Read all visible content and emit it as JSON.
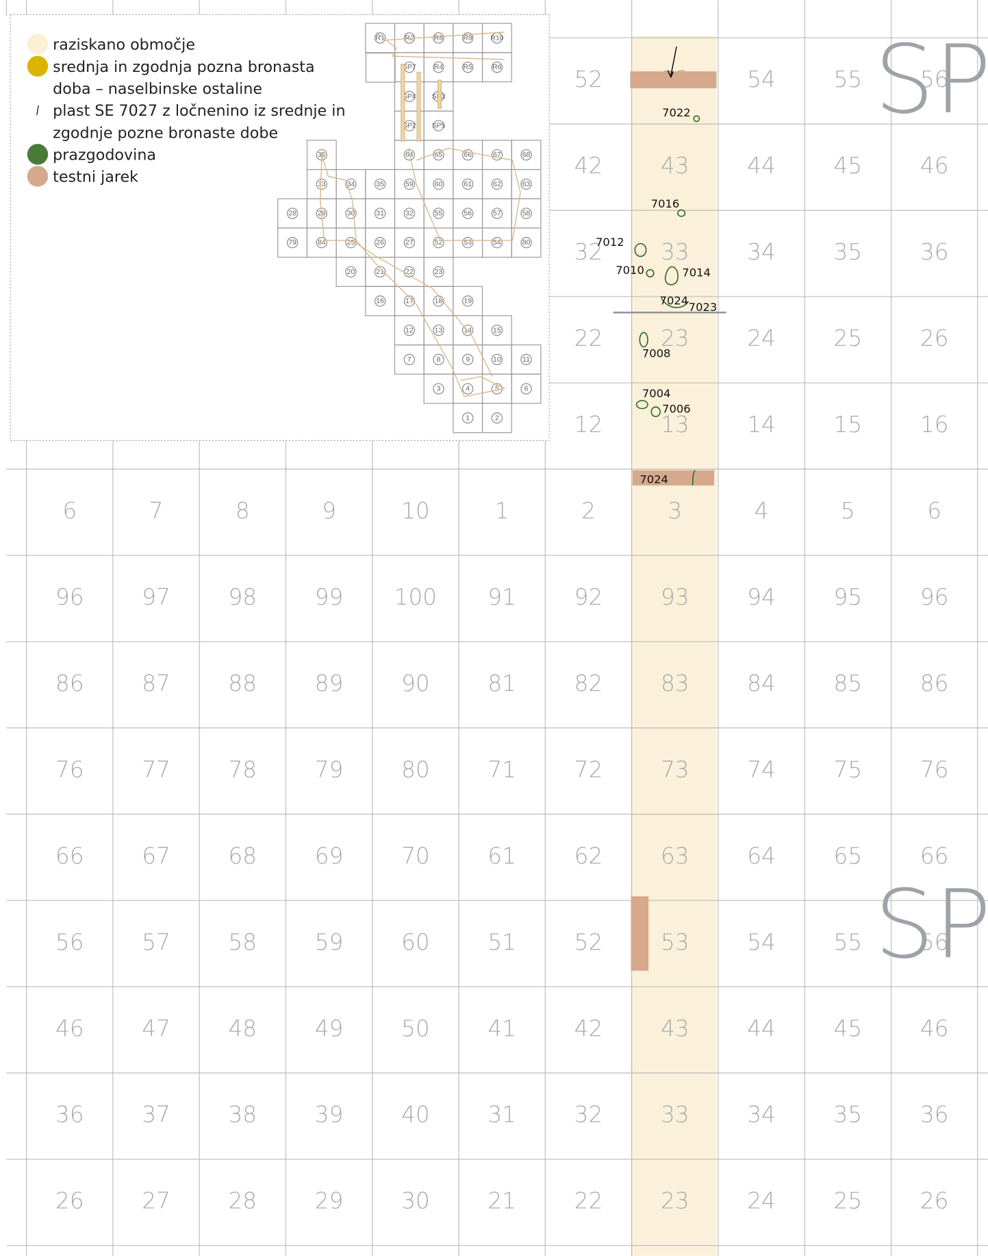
{
  "grid": {
    "rows": [
      [
        null,
        null,
        null,
        null,
        null,
        null,
        "52",
        "53",
        "54",
        "55",
        "56"
      ],
      [
        null,
        null,
        null,
        null,
        null,
        null,
        "42",
        "43",
        "44",
        "45",
        "46"
      ],
      [
        null,
        null,
        null,
        null,
        null,
        null,
        "32",
        "33",
        "34",
        "35",
        "36"
      ],
      [
        null,
        null,
        null,
        null,
        null,
        null,
        "22",
        "23",
        "24",
        "25",
        "26"
      ],
      [
        null,
        null,
        null,
        null,
        null,
        null,
        "12",
        "13",
        "14",
        "15",
        "16"
      ],
      [
        "6",
        "7",
        "8",
        "9",
        "10",
        "1",
        "2",
        "3",
        "4",
        "5",
        "6"
      ],
      [
        "96",
        "97",
        "98",
        "99",
        "100",
        "91",
        "92",
        "93",
        "94",
        "95",
        "96"
      ],
      [
        "86",
        "87",
        "88",
        "89",
        "90",
        "81",
        "82",
        "83",
        "84",
        "85",
        "86"
      ],
      [
        "76",
        "77",
        "78",
        "79",
        "80",
        "71",
        "72",
        "73",
        "74",
        "75",
        "76"
      ],
      [
        "66",
        "67",
        "68",
        "69",
        "70",
        "61",
        "62",
        "63",
        "64",
        "65",
        "66"
      ],
      [
        "56",
        "57",
        "58",
        "59",
        "60",
        "51",
        "52",
        "53",
        "54",
        "55",
        "56"
      ],
      [
        "46",
        "47",
        "48",
        "49",
        "50",
        "41",
        "42",
        "43",
        "44",
        "45",
        "46"
      ],
      [
        "36",
        "37",
        "38",
        "39",
        "40",
        "31",
        "32",
        "33",
        "34",
        "35",
        "36"
      ],
      [
        "26",
        "27",
        "28",
        "29",
        "30",
        "21",
        "22",
        "23",
        "24",
        "25",
        "26"
      ]
    ],
    "sectors": [
      "SP",
      "SP"
    ]
  },
  "features": [
    "7022",
    "7016",
    "7012",
    "7010",
    "7014",
    "7024",
    "7023",
    "7008",
    "7004",
    "7006",
    "7024"
  ],
  "legend": {
    "items": [
      {
        "lines": [
          "raziskano območje"
        ],
        "color": "#fbf0d4"
      },
      {
        "lines": [
          "srednja in zgodnja pozna bronasta",
          "doba – naselbinske ostaline"
        ],
        "color": "#dcb400"
      },
      {
        "lines": [
          "plast SE 7027 z ločnenino iz srednje in",
          "zgodnje pozne bronaste dobe"
        ],
        "color": "#000000"
      },
      {
        "lines": [
          "prazgodovina"
        ],
        "color": "#4a7a3a"
      },
      {
        "lines": [
          "testni jarek"
        ],
        "color": "#d6a98c"
      }
    ]
  },
  "inset": {
    "rows": [
      [
        null,
        null,
        null,
        "R1",
        "R2",
        "R8",
        "R9",
        "R10",
        null
      ],
      [
        null,
        null,
        null,
        null,
        "SP7",
        "R4",
        "R5",
        "R6",
        null
      ],
      [
        null,
        null,
        null,
        null,
        "SP4",
        "SP3",
        null,
        null,
        null
      ],
      [
        null,
        null,
        null,
        null,
        "SP2",
        "SP5",
        null,
        null,
        null
      ],
      [
        null,
        "36",
        null,
        null,
        "64",
        "65",
        "66",
        "67",
        "68"
      ],
      [
        null,
        "33",
        "34",
        "35",
        "59",
        "60",
        "61",
        "62",
        "63"
      ],
      [
        "28",
        "29",
        "30",
        "31",
        "32",
        "55",
        "56",
        "57",
        "58"
      ],
      [
        "79",
        "84",
        "25",
        "26",
        "27",
        "52",
        "53",
        "54",
        "80"
      ],
      [
        null,
        null,
        "20",
        "21",
        "22",
        "23",
        null,
        null,
        null
      ],
      [
        null,
        null,
        null,
        "16",
        "17",
        "18",
        "19",
        null,
        null
      ],
      [
        null,
        null,
        null,
        null,
        "12",
        "13",
        "14",
        "15",
        null
      ],
      [
        null,
        null,
        null,
        null,
        "7",
        "8",
        "9",
        "10",
        "11"
      ],
      [
        null,
        null,
        null,
        null,
        null,
        "3",
        "4",
        "5",
        "6"
      ],
      [
        null,
        null,
        null,
        null,
        null,
        null,
        "1",
        "2",
        null
      ]
    ]
  }
}
